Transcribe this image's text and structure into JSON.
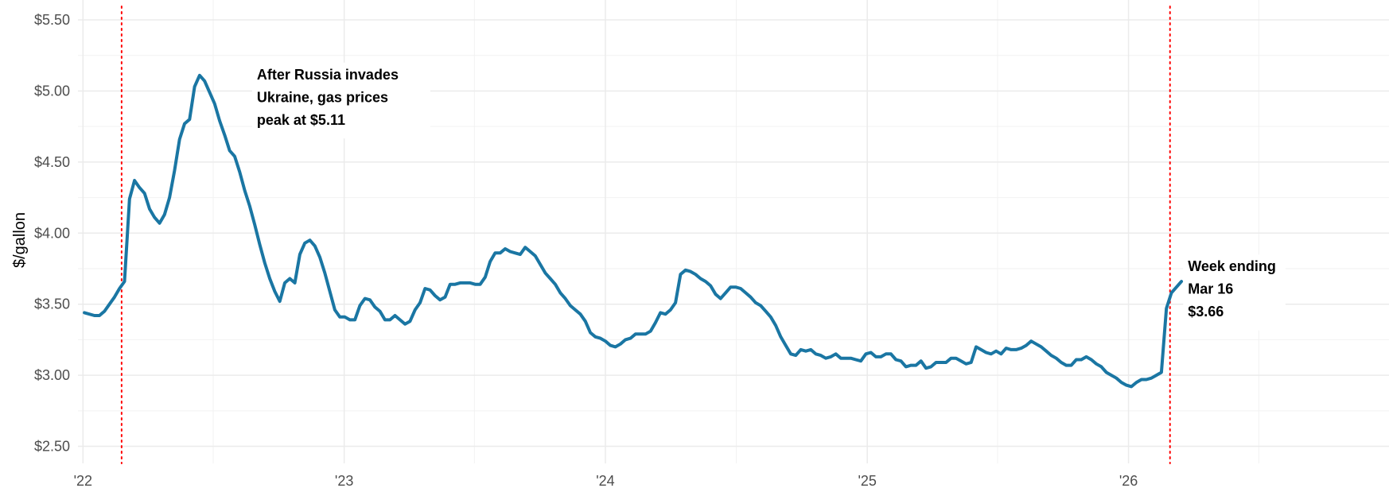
{
  "chart_data": {
    "type": "line",
    "title": "",
    "xlabel": "",
    "ylabel": "$/gallon",
    "ylim": [
      2.38,
      5.64
    ],
    "xlim": [
      "2021-12-25",
      "2026-12-31"
    ],
    "grid": true,
    "line_color": "#1a76a3",
    "marker_color": "#ff0000",
    "y_ticks": [
      {
        "value": 2.5,
        "label": "$2.50"
      },
      {
        "value": 3.0,
        "label": "$3.00"
      },
      {
        "value": 3.5,
        "label": "$3.50"
      },
      {
        "value": 4.0,
        "label": "$4.00"
      },
      {
        "value": 4.5,
        "label": "$4.50"
      },
      {
        "value": 5.0,
        "label": "$5.00"
      },
      {
        "value": 5.5,
        "label": "$5.50"
      }
    ],
    "x_ticks": [
      {
        "value": "2022-01-01",
        "label": "'22"
      },
      {
        "value": "2023-01-01",
        "label": "'23"
      },
      {
        "value": "2024-01-01",
        "label": "'24"
      },
      {
        "value": "2025-01-01",
        "label": "'25"
      },
      {
        "value": "2026-01-01",
        "label": "'26"
      }
    ],
    "reference_lines": [
      {
        "x": "2022-02-24"
      },
      {
        "x": "2026-02-28"
      }
    ],
    "annotations": [
      {
        "lines": [
          "After Russia invades",
          "Ukraine, gas prices",
          "peak at $5.11"
        ],
        "x": "2022-09-01",
        "y": 5.11
      },
      {
        "lines": [
          "Week ending",
          "Mar 16",
          "$3.66"
        ],
        "x": "2026-03-25",
        "y": 3.76
      }
    ],
    "series": [
      {
        "points": [
          [
            "2022-01-03",
            3.44
          ],
          [
            "2022-01-17",
            3.42
          ],
          [
            "2022-01-24",
            3.42
          ],
          [
            "2022-01-31",
            3.45
          ],
          [
            "2022-02-07",
            3.5
          ],
          [
            "2022-02-14",
            3.55
          ],
          [
            "2022-02-21",
            3.61
          ],
          [
            "2022-02-28",
            3.66
          ],
          [
            "2022-03-07",
            4.24
          ],
          [
            "2022-03-14",
            4.37
          ],
          [
            "2022-03-21",
            4.32
          ],
          [
            "2022-03-28",
            4.28
          ],
          [
            "2022-04-04",
            4.17
          ],
          [
            "2022-04-11",
            4.11
          ],
          [
            "2022-04-18",
            4.07
          ],
          [
            "2022-04-25",
            4.13
          ],
          [
            "2022-05-02",
            4.25
          ],
          [
            "2022-05-09",
            4.44
          ],
          [
            "2022-05-16",
            4.66
          ],
          [
            "2022-05-23",
            4.77
          ],
          [
            "2022-05-30",
            4.8
          ],
          [
            "2022-06-06",
            5.03
          ],
          [
            "2022-06-13",
            5.11
          ],
          [
            "2022-06-20",
            5.07
          ],
          [
            "2022-06-27",
            4.99
          ],
          [
            "2022-07-04",
            4.91
          ],
          [
            "2022-07-11",
            4.79
          ],
          [
            "2022-07-18",
            4.69
          ],
          [
            "2022-07-25",
            4.58
          ],
          [
            "2022-08-01",
            4.54
          ],
          [
            "2022-08-08",
            4.43
          ],
          [
            "2022-08-15",
            4.3
          ],
          [
            "2022-08-22",
            4.19
          ],
          [
            "2022-08-29",
            4.06
          ],
          [
            "2022-09-05",
            3.92
          ],
          [
            "2022-09-12",
            3.79
          ],
          [
            "2022-09-19",
            3.68
          ],
          [
            "2022-09-26",
            3.59
          ],
          [
            "2022-10-03",
            3.52
          ],
          [
            "2022-10-10",
            3.65
          ],
          [
            "2022-10-17",
            3.68
          ],
          [
            "2022-10-24",
            3.65
          ],
          [
            "2022-10-31",
            3.85
          ],
          [
            "2022-11-07",
            3.93
          ],
          [
            "2022-11-14",
            3.95
          ],
          [
            "2022-11-21",
            3.91
          ],
          [
            "2022-11-28",
            3.83
          ],
          [
            "2022-12-05",
            3.72
          ],
          [
            "2022-12-12",
            3.59
          ],
          [
            "2022-12-19",
            3.46
          ],
          [
            "2022-12-26",
            3.41
          ],
          [
            "2023-01-02",
            3.41
          ],
          [
            "2023-01-09",
            3.39
          ],
          [
            "2023-01-16",
            3.39
          ],
          [
            "2023-01-23",
            3.49
          ],
          [
            "2023-01-30",
            3.54
          ],
          [
            "2023-02-06",
            3.53
          ],
          [
            "2023-02-13",
            3.48
          ],
          [
            "2023-02-20",
            3.45
          ],
          [
            "2023-02-27",
            3.39
          ],
          [
            "2023-03-06",
            3.39
          ],
          [
            "2023-03-13",
            3.42
          ],
          [
            "2023-03-20",
            3.39
          ],
          [
            "2023-03-27",
            3.36
          ],
          [
            "2023-04-03",
            3.38
          ],
          [
            "2023-04-10",
            3.46
          ],
          [
            "2023-04-17",
            3.51
          ],
          [
            "2023-04-24",
            3.61
          ],
          [
            "2023-05-01",
            3.6
          ],
          [
            "2023-05-08",
            3.56
          ],
          [
            "2023-05-15",
            3.53
          ],
          [
            "2023-05-22",
            3.55
          ],
          [
            "2023-05-29",
            3.64
          ],
          [
            "2023-06-05",
            3.64
          ],
          [
            "2023-06-12",
            3.65
          ],
          [
            "2023-06-19",
            3.65
          ],
          [
            "2023-06-26",
            3.65
          ],
          [
            "2023-07-03",
            3.64
          ],
          [
            "2023-07-10",
            3.64
          ],
          [
            "2023-07-17",
            3.69
          ],
          [
            "2023-07-24",
            3.8
          ],
          [
            "2023-07-31",
            3.86
          ],
          [
            "2023-08-07",
            3.86
          ],
          [
            "2023-08-14",
            3.89
          ],
          [
            "2023-08-21",
            3.87
          ],
          [
            "2023-08-28",
            3.86
          ],
          [
            "2023-09-04",
            3.85
          ],
          [
            "2023-09-11",
            3.9
          ],
          [
            "2023-09-18",
            3.87
          ],
          [
            "2023-09-25",
            3.84
          ],
          [
            "2023-10-02",
            3.78
          ],
          [
            "2023-10-09",
            3.72
          ],
          [
            "2023-10-16",
            3.68
          ],
          [
            "2023-10-23",
            3.64
          ],
          [
            "2023-10-30",
            3.58
          ],
          [
            "2023-11-06",
            3.54
          ],
          [
            "2023-11-13",
            3.49
          ],
          [
            "2023-11-20",
            3.46
          ],
          [
            "2023-11-27",
            3.43
          ],
          [
            "2023-12-04",
            3.38
          ],
          [
            "2023-12-11",
            3.3
          ],
          [
            "2023-12-18",
            3.27
          ],
          [
            "2023-12-25",
            3.26
          ],
          [
            "2024-01-01",
            3.24
          ],
          [
            "2024-01-08",
            3.21
          ],
          [
            "2024-01-15",
            3.2
          ],
          [
            "2024-01-22",
            3.22
          ],
          [
            "2024-01-29",
            3.25
          ],
          [
            "2024-02-05",
            3.26
          ],
          [
            "2024-02-12",
            3.29
          ],
          [
            "2024-02-19",
            3.29
          ],
          [
            "2024-02-26",
            3.29
          ],
          [
            "2024-03-04",
            3.31
          ],
          [
            "2024-03-11",
            3.37
          ],
          [
            "2024-03-18",
            3.44
          ],
          [
            "2024-03-25",
            3.43
          ],
          [
            "2024-04-01",
            3.46
          ],
          [
            "2024-04-08",
            3.51
          ],
          [
            "2024-04-15",
            3.71
          ],
          [
            "2024-04-22",
            3.74
          ],
          [
            "2024-04-29",
            3.73
          ],
          [
            "2024-05-06",
            3.71
          ],
          [
            "2024-05-13",
            3.68
          ],
          [
            "2024-05-20",
            3.66
          ],
          [
            "2024-05-27",
            3.63
          ],
          [
            "2024-06-03",
            3.57
          ],
          [
            "2024-06-10",
            3.54
          ],
          [
            "2024-06-17",
            3.58
          ],
          [
            "2024-06-24",
            3.62
          ],
          [
            "2024-07-01",
            3.62
          ],
          [
            "2024-07-08",
            3.61
          ],
          [
            "2024-07-15",
            3.58
          ],
          [
            "2024-07-22",
            3.55
          ],
          [
            "2024-07-29",
            3.51
          ],
          [
            "2024-08-05",
            3.49
          ],
          [
            "2024-08-12",
            3.45
          ],
          [
            "2024-08-19",
            3.41
          ],
          [
            "2024-08-26",
            3.35
          ],
          [
            "2024-09-02",
            3.27
          ],
          [
            "2024-09-09",
            3.21
          ],
          [
            "2024-09-16",
            3.15
          ],
          [
            "2024-09-23",
            3.14
          ],
          [
            "2024-09-30",
            3.18
          ],
          [
            "2024-10-07",
            3.17
          ],
          [
            "2024-10-14",
            3.18
          ],
          [
            "2024-10-21",
            3.15
          ],
          [
            "2024-10-28",
            3.14
          ],
          [
            "2024-11-04",
            3.12
          ],
          [
            "2024-11-11",
            3.13
          ],
          [
            "2024-11-18",
            3.15
          ],
          [
            "2024-11-25",
            3.12
          ],
          [
            "2024-12-02",
            3.12
          ],
          [
            "2024-12-09",
            3.12
          ],
          [
            "2024-12-16",
            3.11
          ],
          [
            "2024-12-23",
            3.1
          ],
          [
            "2024-12-30",
            3.15
          ],
          [
            "2025-01-06",
            3.16
          ],
          [
            "2025-01-13",
            3.13
          ],
          [
            "2025-01-20",
            3.13
          ],
          [
            "2025-01-27",
            3.15
          ],
          [
            "2025-02-03",
            3.15
          ],
          [
            "2025-02-10",
            3.11
          ],
          [
            "2025-02-17",
            3.1
          ],
          [
            "2025-02-24",
            3.06
          ],
          [
            "2025-03-03",
            3.07
          ],
          [
            "2025-03-10",
            3.07
          ],
          [
            "2025-03-17",
            3.1
          ],
          [
            "2025-03-24",
            3.05
          ],
          [
            "2025-03-31",
            3.06
          ],
          [
            "2025-04-07",
            3.09
          ],
          [
            "2025-04-14",
            3.09
          ],
          [
            "2025-04-21",
            3.09
          ],
          [
            "2025-04-28",
            3.12
          ],
          [
            "2025-05-05",
            3.12
          ],
          [
            "2025-05-12",
            3.1
          ],
          [
            "2025-05-19",
            3.08
          ],
          [
            "2025-05-26",
            3.09
          ],
          [
            "2025-06-02",
            3.2
          ],
          [
            "2025-06-09",
            3.18
          ],
          [
            "2025-06-16",
            3.16
          ],
          [
            "2025-06-23",
            3.15
          ],
          [
            "2025-06-30",
            3.17
          ],
          [
            "2025-07-07",
            3.15
          ],
          [
            "2025-07-14",
            3.19
          ],
          [
            "2025-07-21",
            3.18
          ],
          [
            "2025-07-28",
            3.18
          ],
          [
            "2025-08-04",
            3.19
          ],
          [
            "2025-08-11",
            3.21
          ],
          [
            "2025-08-18",
            3.24
          ],
          [
            "2025-08-25",
            3.22
          ],
          [
            "2025-09-01",
            3.2
          ],
          [
            "2025-09-08",
            3.17
          ],
          [
            "2025-09-15",
            3.14
          ],
          [
            "2025-09-22",
            3.12
          ],
          [
            "2025-09-29",
            3.09
          ],
          [
            "2025-10-06",
            3.07
          ],
          [
            "2025-10-13",
            3.07
          ],
          [
            "2025-10-20",
            3.11
          ],
          [
            "2025-10-27",
            3.11
          ],
          [
            "2025-11-03",
            3.13
          ],
          [
            "2025-11-10",
            3.11
          ],
          [
            "2025-11-17",
            3.08
          ],
          [
            "2025-11-24",
            3.06
          ],
          [
            "2025-12-01",
            3.02
          ],
          [
            "2025-12-08",
            3.0
          ],
          [
            "2025-12-15",
            2.98
          ],
          [
            "2025-12-22",
            2.95
          ],
          [
            "2025-12-29",
            2.93
          ],
          [
            "2026-01-05",
            2.92
          ],
          [
            "2026-01-12",
            2.95
          ],
          [
            "2026-01-19",
            2.97
          ],
          [
            "2026-01-26",
            2.97
          ],
          [
            "2026-02-02",
            2.98
          ],
          [
            "2026-02-09",
            3.0
          ],
          [
            "2026-02-16",
            3.02
          ],
          [
            "2026-02-23",
            3.47
          ],
          [
            "2026-03-02",
            3.58
          ],
          [
            "2026-03-16",
            3.66
          ]
        ]
      }
    ]
  }
}
